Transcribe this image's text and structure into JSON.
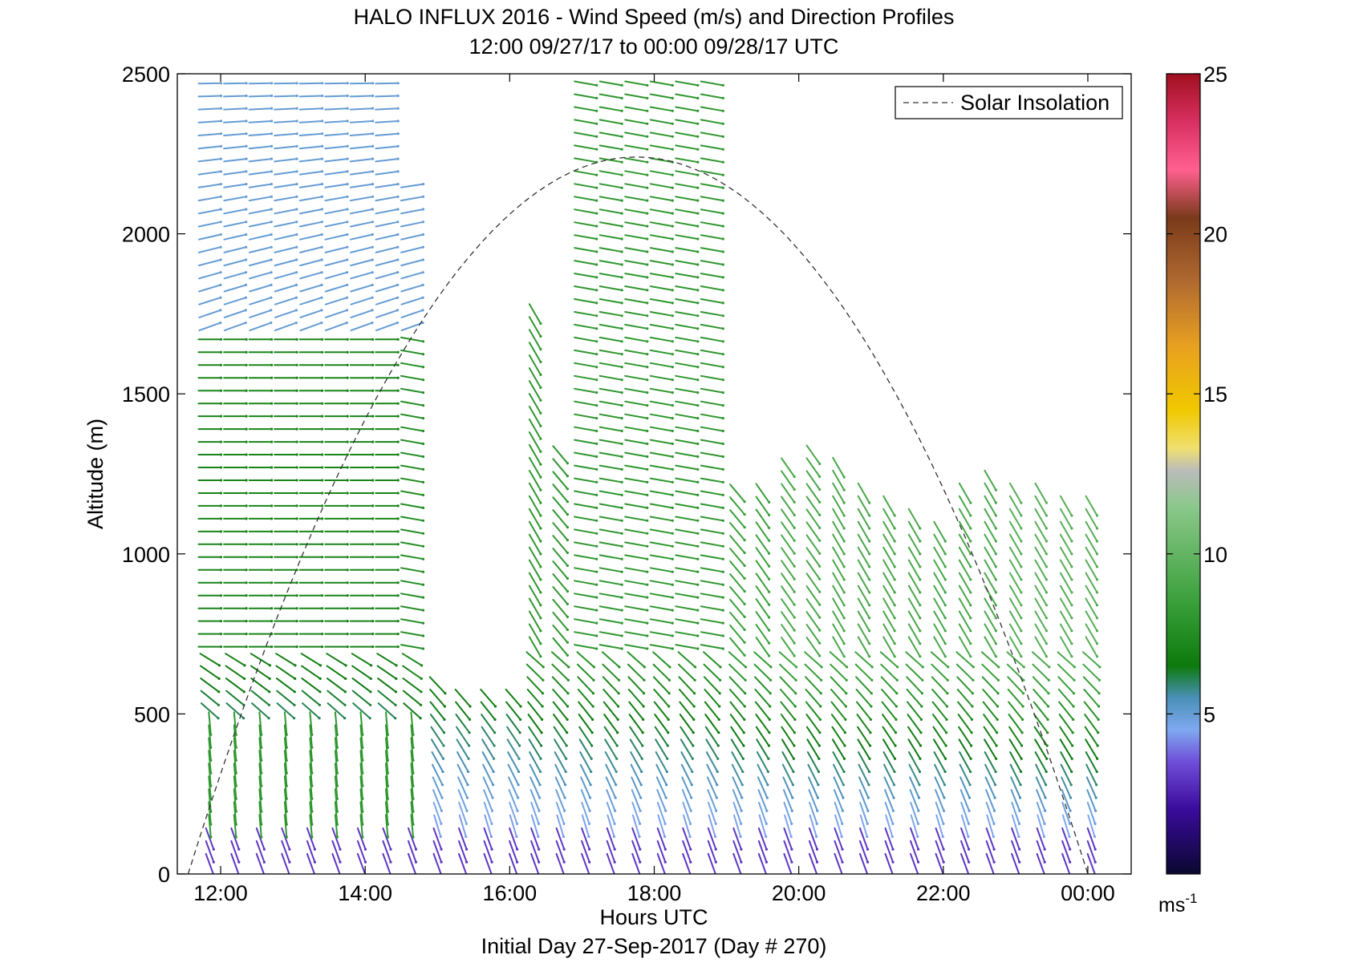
{
  "chart_data": {
    "type": "wind-barb-profile",
    "title": "HALO INFLUX 2016 - Wind Speed (m/s) and Direction Profiles",
    "subtitle": "12:00 09/27/17 to 00:00 09/28/17  UTC",
    "xlabel": "Hours UTC",
    "xlabel2": "Initial Day 27-Sep-2017 (Day # 270)",
    "ylabel": "Altitude (m)",
    "xlim": [
      11.4,
      24.6
    ],
    "ylim": [
      0,
      2500
    ],
    "xticks": [
      {
        "value": 12,
        "label": "12:00"
      },
      {
        "value": 14,
        "label": "14:00"
      },
      {
        "value": 16,
        "label": "16:00"
      },
      {
        "value": 18,
        "label": "18:00"
      },
      {
        "value": 20,
        "label": "20:00"
      },
      {
        "value": 22,
        "label": "22:00"
      },
      {
        "value": 24,
        "label": "00:00"
      }
    ],
    "yticks": [
      {
        "value": 0,
        "label": "0"
      },
      {
        "value": 500,
        "label": "500"
      },
      {
        "value": 1000,
        "label": "1000"
      },
      {
        "value": 1500,
        "label": "1500"
      },
      {
        "value": 2000,
        "label": "2000"
      },
      {
        "value": 2500,
        "label": "2500"
      }
    ],
    "legend": {
      "placement": "top-right",
      "entry": "Solar Insolation"
    },
    "colorbar": {
      "range": [
        0,
        25
      ],
      "ticks": [
        {
          "value": 5,
          "label": "5"
        },
        {
          "value": 10,
          "label": "10"
        },
        {
          "value": 15,
          "label": "15"
        },
        {
          "value": 20,
          "label": "20"
        },
        {
          "value": 25,
          "label": "25"
        }
      ],
      "unit": "ms",
      "unit_exp": "-1",
      "colors": [
        "#0a0830",
        "#3a0a9a",
        "#6f4ed8",
        "#7fa8f0",
        "#4a90b8",
        "#0d7a0d",
        "#3aa03a",
        "#8cc88c",
        "#bbbbbb",
        "#f0e070",
        "#f0c800",
        "#e8a020",
        "#b06a30",
        "#7a3a1a",
        "#ff6090",
        "#d83060",
        "#a01020"
      ],
      "color_stops": [
        0,
        2,
        3.5,
        4.5,
        5.5,
        6.5,
        8.5,
        11.5,
        12.6,
        13.3,
        14.5,
        16.5,
        18.5,
        20.5,
        22,
        23.5,
        25
      ]
    },
    "solar_insolation": {
      "start_hour": 11.55,
      "peak_hour": 17.75,
      "end_hour": 24.0,
      "peak_altitude": 2240
    },
    "profiles": [
      {
        "hour": 11.85,
        "top": 2490,
        "dir": 90,
        "speed": 7.0
      },
      {
        "hour": 12.2,
        "top": 2490,
        "dir": 90,
        "speed": 7.0
      },
      {
        "hour": 12.55,
        "top": 2490,
        "dir": 90,
        "speed": 7.0
      },
      {
        "hour": 12.9,
        "top": 2490,
        "dir": 90,
        "speed": 7.0
      },
      {
        "hour": 13.25,
        "top": 2490,
        "dir": 90,
        "speed": 7.0
      },
      {
        "hour": 13.6,
        "top": 2490,
        "dir": 90,
        "speed": 7.0
      },
      {
        "hour": 13.95,
        "top": 2490,
        "dir": 90,
        "speed": 7.0
      },
      {
        "hour": 14.3,
        "top": 2490,
        "dir": 90,
        "speed": 7.0
      },
      {
        "hour": 14.65,
        "top": 2170,
        "dir": 100,
        "speed": 7.5
      },
      {
        "hour": 15.0,
        "top": 600,
        "dir": 140,
        "speed": 7.5
      },
      {
        "hour": 15.35,
        "top": 580,
        "dir": 140,
        "speed": 7.5
      },
      {
        "hour": 15.7,
        "top": 560,
        "dir": 140,
        "speed": 7.5
      },
      {
        "hour": 16.05,
        "top": 560,
        "dir": 140,
        "speed": 7.5
      },
      {
        "hour": 16.35,
        "top": 1750,
        "dir": 150,
        "speed": 8.0
      },
      {
        "hour": 16.7,
        "top": 1320,
        "dir": 140,
        "speed": 8.0
      },
      {
        "hour": 17.05,
        "top": 2490,
        "dir": 100,
        "speed": 8.0
      },
      {
        "hour": 17.4,
        "top": 2490,
        "dir": 100,
        "speed": 8.0
      },
      {
        "hour": 17.75,
        "top": 2490,
        "dir": 100,
        "speed": 8.0
      },
      {
        "hour": 18.1,
        "top": 2490,
        "dir": 100,
        "speed": 8.0
      },
      {
        "hour": 18.45,
        "top": 2490,
        "dir": 100,
        "speed": 8.0
      },
      {
        "hour": 18.8,
        "top": 2490,
        "dir": 100,
        "speed": 8.0
      },
      {
        "hour": 19.15,
        "top": 1210,
        "dir": 140,
        "speed": 8.5
      },
      {
        "hour": 19.5,
        "top": 1210,
        "dir": 145,
        "speed": 8.5
      },
      {
        "hour": 19.85,
        "top": 1280,
        "dir": 145,
        "speed": 9.0
      },
      {
        "hour": 20.2,
        "top": 1320,
        "dir": 145,
        "speed": 9.0
      },
      {
        "hour": 20.55,
        "top": 1270,
        "dir": 150,
        "speed": 9.0
      },
      {
        "hour": 20.9,
        "top": 1200,
        "dir": 150,
        "speed": 9.0
      },
      {
        "hour": 21.25,
        "top": 1160,
        "dir": 150,
        "speed": 9.0
      },
      {
        "hour": 21.6,
        "top": 1120,
        "dir": 150,
        "speed": 9.0
      },
      {
        "hour": 21.95,
        "top": 1090,
        "dir": 150,
        "speed": 9.0
      },
      {
        "hour": 22.3,
        "top": 1220,
        "dir": 150,
        "speed": 9.0
      },
      {
        "hour": 22.65,
        "top": 1230,
        "dir": 150,
        "speed": 9.0
      },
      {
        "hour": 23.0,
        "top": 1220,
        "dir": 150,
        "speed": 9.5
      },
      {
        "hour": 23.35,
        "top": 1200,
        "dir": 150,
        "speed": 9.5
      },
      {
        "hour": 23.7,
        "top": 1180,
        "dir": 150,
        "speed": 9.5
      },
      {
        "hour": 24.05,
        "top": 1160,
        "dir": 150,
        "speed": 9.5
      }
    ]
  }
}
